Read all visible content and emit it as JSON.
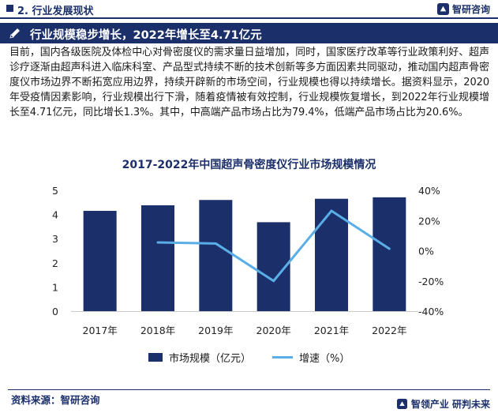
{
  "header": {
    "section": "2. 行业发展现状",
    "brand": "智研咨询"
  },
  "banner": {
    "title": "行业规模稳步增长，2022年增长至4.71亿元"
  },
  "body_text": "目前，国内各级医院及体检中心对骨密度仪的需求量日益增加，同时，国家医疗改革等行业政策利好、超声诊疗逐渐由超声科进入临床科室、产品型式持续不断的技术创新等多方面因素共同驱动，推动国内超声骨密度仪市场边界不断拓宽应用边界，持续开辟新的市场空间，行业规模也得以持续增长。据资料显示，2020年受疫情因素影响，行业规模出行下滑，随着疫情被有效控制，行业规模恢复增长，到2022年行业规模增长至4.71亿元，同比增长1.3%。其中，中高端产品市场占比为79.4%，低端产品市场占比为20.6%。",
  "chart_data": {
    "type": "bar",
    "title": "2017-2022年中国超声骨密度仪行业市场规模情况",
    "categories": [
      "2017年",
      "2018年",
      "2019年",
      "2020年",
      "2021年",
      "2022年"
    ],
    "series": [
      {
        "name": "市场规模（亿元）",
        "type": "bar",
        "axis": "left",
        "values": [
          4.15,
          4.38,
          4.6,
          3.68,
          4.65,
          4.71
        ]
      },
      {
        "name": "增速（%）",
        "type": "line",
        "axis": "right",
        "values": [
          null,
          5.5,
          4.8,
          -20.0,
          26.4,
          1.3
        ]
      }
    ],
    "y_left": {
      "ticks": [
        "0",
        "1",
        "2",
        "3",
        "4",
        "5"
      ],
      "range": [
        0,
        5
      ]
    },
    "y_right": {
      "ticks": [
        "-40%",
        "-20%",
        "0%",
        "20%",
        "40%"
      ],
      "range": [
        -40,
        40
      ]
    },
    "legend_position": "bottom",
    "grid": false,
    "colors": {
      "bar": "#1b2f6b",
      "line": "#5aaee8"
    }
  },
  "footer": {
    "source": "资料来源：智研咨询",
    "slogan": "智领产业  研判未来"
  },
  "colors": {
    "brand": "#1b2f6b",
    "accent": "#5aaee8"
  }
}
